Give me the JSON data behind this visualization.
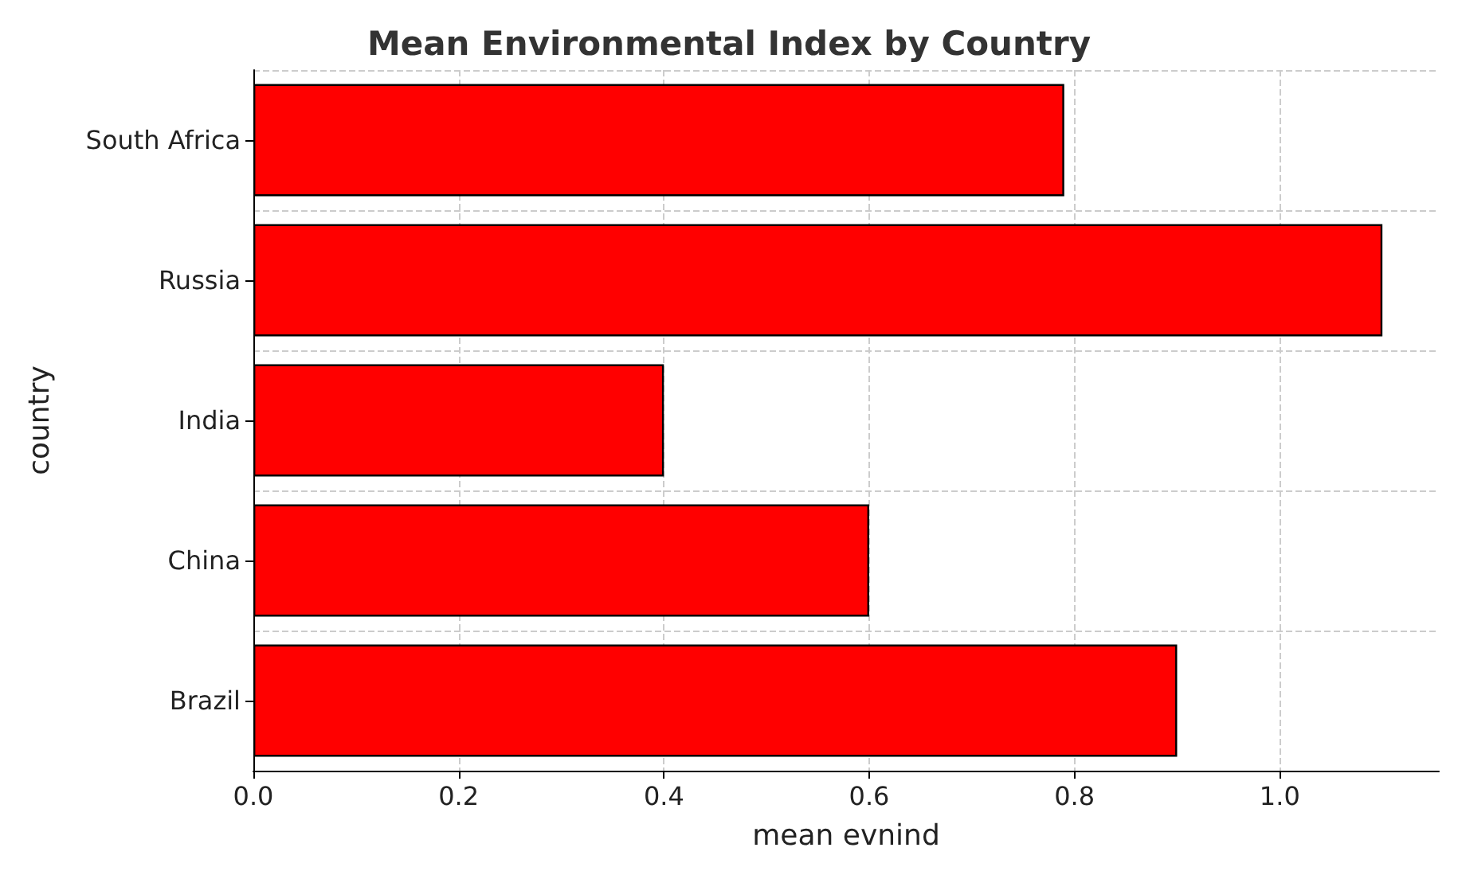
{
  "chart_data": {
    "type": "bar",
    "orientation": "horizontal",
    "title": "Mean Environmental Index by Country",
    "xlabel": "mean evnind",
    "ylabel": "country",
    "categories": [
      "South Africa",
      "Russia",
      "India",
      "China",
      "Brazil"
    ],
    "values": [
      0.79,
      1.1,
      0.4,
      0.6,
      0.9
    ],
    "color": "#ff0000",
    "xlim": [
      0,
      1.155
    ],
    "xticks": [
      {
        "value": 0,
        "label": "0.0"
      },
      {
        "value": 0.2,
        "label": "0.2"
      },
      {
        "value": 0.4,
        "label": "0.4"
      },
      {
        "value": 0.6,
        "label": "0.6"
      },
      {
        "value": 0.8,
        "label": "0.8"
      },
      {
        "value": 1,
        "label": "1.0"
      }
    ],
    "grid": true
  }
}
